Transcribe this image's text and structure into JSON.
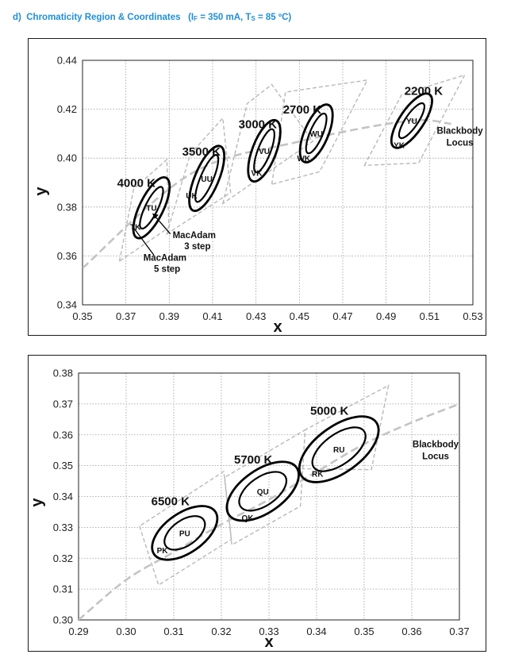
{
  "header": {
    "prefix": "d)",
    "title": "Chromaticity Region & Coordinates",
    "cond_open": "(I",
    "cond_if_sub": "F",
    "cond_mid": " = 350 mA, T",
    "cond_ts_sub": "S",
    "cond_end": " = 85 ºC)"
  },
  "chart_data": [
    {
      "type": "scatter",
      "xlabel": "x",
      "ylabel": "y",
      "xlim": [
        0.35,
        0.53
      ],
      "ylim": [
        0.34,
        0.44
      ],
      "xticks": [
        "0.35",
        "0.37",
        "0.39",
        "0.41",
        "0.43",
        "0.45",
        "0.47",
        "0.49",
        "0.51",
        "0.53"
      ],
      "yticks": [
        "0.34",
        "0.36",
        "0.38",
        "0.40",
        "0.42",
        "0.44"
      ],
      "grid": true,
      "regions": [
        {
          "cct": "4000 K",
          "label": "4000 K",
          "center": [
            0.3818,
            0.3797
          ],
          "quad": [
            [
              0.367,
              0.3578
            ],
            [
              0.3736,
              0.3874
            ],
            [
              0.3889,
              0.3994
            ],
            [
              0.3898,
              0.3716
            ]
          ],
          "bins": [
            {
              "label": "TU",
              "x": 0.3818,
              "y": 0.3797
            },
            {
              "label": "TK",
              "x": 0.3744,
              "y": 0.372
            }
          ]
        },
        {
          "cct": "3500 K",
          "label": "3500 K",
          "center": [
            0.4073,
            0.3917
          ],
          "quad": [
            [
              0.3889,
              0.369
            ],
            [
              0.3996,
              0.4015
            ],
            [
              0.4147,
              0.4164
            ],
            [
              0.4183,
              0.3859
            ]
          ],
          "bins": [
            {
              "label": "UU",
              "x": 0.4073,
              "y": 0.3917
            },
            {
              "label": "UK",
              "x": 0.4003,
              "y": 0.3848
            }
          ]
        },
        {
          "cct": "3000 K",
          "label": "3000 K",
          "center": [
            0.4338,
            0.403
          ],
          "quad": [
            [
              0.4147,
              0.3814
            ],
            [
              0.4259,
              0.4223
            ],
            [
              0.4373,
              0.4301
            ],
            [
              0.4562,
              0.4069
            ]
          ],
          "bins": [
            {
              "label": "VU",
              "x": 0.4338,
              "y": 0.403
            },
            {
              "label": "VK",
              "x": 0.4303,
              "y": 0.394
            }
          ]
        },
        {
          "cct": "2700 K",
          "label": "2700 K",
          "center": [
            0.4578,
            0.4101
          ],
          "quad": [
            [
              0.4373,
              0.3893
            ],
            [
              0.4436,
              0.427
            ],
            [
              0.4813,
              0.4319
            ],
            [
              0.4593,
              0.3944
            ]
          ],
          "bins": [
            {
              "label": "WU",
              "x": 0.4578,
              "y": 0.4101
            },
            {
              "label": "WK",
              "x": 0.452,
              "y": 0.4
            }
          ]
        },
        {
          "cct": "2200 K",
          "label": "2200 K",
          "center": [
            0.5018,
            0.4153
          ],
          "quad": [
            [
              0.48,
              0.397
            ],
            [
              0.4972,
              0.426
            ],
            [
              0.5262,
              0.434
            ],
            [
              0.505,
              0.398
            ]
          ],
          "bins": [
            {
              "label": "YU",
              "x": 0.5018,
              "y": 0.4153
            },
            {
              "label": "YK",
              "x": 0.496,
              "y": 0.4055
            }
          ]
        }
      ],
      "locus": {
        "label_line1": "Blackbody",
        "label_line2": "Locus",
        "points": [
          [
            0.35,
            0.355
          ],
          [
            0.4,
            0.3936
          ],
          [
            0.45,
            0.4068
          ],
          [
            0.5,
            0.4152
          ],
          [
            0.52,
            0.414
          ]
        ]
      },
      "annotations": {
        "macadam3_line1": "MacAdam",
        "macadam3_line2": "3 step",
        "macadam5_line1": "MacAdam",
        "macadam5_line2": "5 step"
      }
    },
    {
      "type": "scatter",
      "xlabel": "x",
      "ylabel": "y",
      "xlim": [
        0.29,
        0.37
      ],
      "ylim": [
        0.3,
        0.38
      ],
      "xticks": [
        "0.29",
        "0.30",
        "0.31",
        "0.32",
        "0.33",
        "0.34",
        "0.35",
        "0.36",
        "0.37"
      ],
      "yticks": [
        "0.30",
        "0.31",
        "0.32",
        "0.33",
        "0.34",
        "0.35",
        "0.36",
        "0.37",
        "0.38"
      ],
      "grid": true,
      "regions": [
        {
          "cct": "6500 K",
          "label": "6500 K",
          "center": [
            0.3123,
            0.3282
          ],
          "quad": [
            [
              0.3028,
              0.3304
            ],
            [
              0.3068,
              0.3113
            ],
            [
              0.3221,
              0.3261
            ],
            [
              0.3205,
              0.3481
            ]
          ],
          "bins": [
            {
              "label": "PU",
              "x": 0.3123,
              "y": 0.3282
            },
            {
              "label": "PK",
              "x": 0.3076,
              "y": 0.3226
            }
          ]
        },
        {
          "cct": "5700 K",
          "label": "5700 K",
          "center": [
            0.3287,
            0.3417
          ],
          "quad": [
            [
              0.3207,
              0.3462
            ],
            [
              0.3222,
              0.3243
            ],
            [
              0.3366,
              0.3369
            ],
            [
              0.3376,
              0.3616
            ]
          ],
          "bins": [
            {
              "label": "QU",
              "x": 0.3287,
              "y": 0.3417
            },
            {
              "label": "QK",
              "x": 0.3255,
              "y": 0.3332
            }
          ]
        },
        {
          "cct": "5000 K",
          "label": "5000 K",
          "center": [
            0.3447,
            0.3553
          ],
          "quad": [
            [
              0.3371,
              0.349
            ],
            [
              0.3376,
              0.3616
            ],
            [
              0.3551,
              0.376
            ],
            [
              0.3515,
              0.3487
            ]
          ],
          "bins": [
            {
              "label": "RU",
              "x": 0.3447,
              "y": 0.3553
            },
            {
              "label": "RK",
              "x": 0.3402,
              "y": 0.3475
            }
          ]
        }
      ],
      "locus": {
        "label_line1": "Blackbody",
        "label_line2": "Locus",
        "points": [
          [
            0.29,
            0.3
          ],
          [
            0.3,
            0.313
          ],
          [
            0.31,
            0.322
          ],
          [
            0.32,
            0.331
          ],
          [
            0.33,
            0.339
          ],
          [
            0.34,
            0.348
          ],
          [
            0.35,
            0.357
          ],
          [
            0.36,
            0.364
          ],
          [
            0.37,
            0.37
          ]
        ]
      }
    }
  ]
}
